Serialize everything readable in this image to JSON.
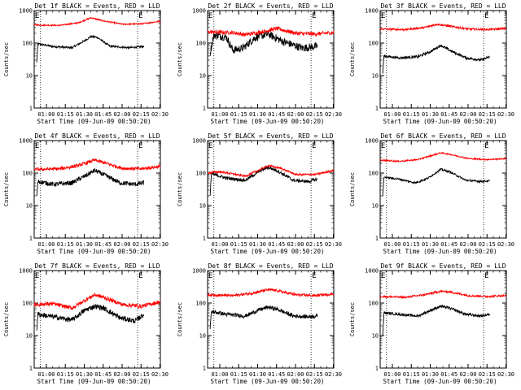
{
  "figure": {
    "x_title": "Start Time (09-Jun-09 00:50:20)",
    "y_title": "Counts/sec",
    "event_marker": "E",
    "x_ticks": [
      "01:00",
      "01:15",
      "01:30",
      "01:45",
      "02:00",
      "02:15",
      "02:30"
    ],
    "y_ticks": [
      "1",
      "10",
      "100",
      "1000"
    ]
  },
  "chart_data": [
    {
      "type": "line",
      "title": "Det 1f BLACK = Events, RED = LLD",
      "xlabel": "Start Time (09-Jun-09 00:50:20)",
      "ylabel": "Counts/sec",
      "x_unit": "minutes after 00:50:20",
      "xlim": [
        0,
        100
      ],
      "ylim": [
        1,
        1000
      ],
      "y_scale": "log",
      "event_markers": [
        {
          "label": "E",
          "x": 0
        },
        {
          "label": "E",
          "x": 82
        }
      ],
      "vlines": [
        5,
        82
      ],
      "series": [
        {
          "color": "#000000",
          "start": 2,
          "end": 87,
          "noise": 0.03,
          "points": [
            [
              2,
              25
            ],
            [
              3,
              95
            ],
            [
              15,
              78
            ],
            [
              30,
              72
            ],
            [
              40,
              118
            ],
            [
              45,
              160
            ],
            [
              50,
              150
            ],
            [
              60,
              80
            ],
            [
              75,
              72
            ],
            [
              87,
              78
            ]
          ]
        },
        {
          "color": "#ff0000",
          "start": 0,
          "end": 100,
          "noise": 0.02,
          "points": [
            [
              0,
              360
            ],
            [
              20,
              350
            ],
            [
              35,
              420
            ],
            [
              45,
              600
            ],
            [
              55,
              480
            ],
            [
              70,
              380
            ],
            [
              85,
              390
            ],
            [
              100,
              470
            ]
          ]
        }
      ]
    },
    {
      "type": "line",
      "title": "Det 2f BLACK = Events, RED = LLD",
      "xlabel": "Start Time (09-Jun-09 00:50:20)",
      "ylabel": "Counts/sec",
      "x_unit": "minutes after 00:50:20",
      "xlim": [
        0,
        100
      ],
      "ylim": [
        1,
        1000
      ],
      "y_scale": "log",
      "event_markers": [
        {
          "label": "E",
          "x": 0
        },
        {
          "label": "E",
          "x": 82
        }
      ],
      "vlines": [
        5,
        82
      ],
      "series": [
        {
          "color": "#000000",
          "start": 2,
          "end": 87,
          "noise": 0.12,
          "points": [
            [
              2,
              50
            ],
            [
              5,
              180
            ],
            [
              15,
              150
            ],
            [
              20,
              60
            ],
            [
              28,
              70
            ],
            [
              38,
              150
            ],
            [
              48,
              190
            ],
            [
              60,
              110
            ],
            [
              75,
              70
            ],
            [
              87,
              80
            ]
          ]
        },
        {
          "color": "#ff0000",
          "start": 0,
          "end": 100,
          "noise": 0.06,
          "points": [
            [
              0,
              220
            ],
            [
              20,
              210
            ],
            [
              30,
              180
            ],
            [
              45,
              230
            ],
            [
              55,
              280
            ],
            [
              70,
              200
            ],
            [
              85,
              190
            ],
            [
              100,
              210
            ]
          ]
        }
      ]
    },
    {
      "type": "line",
      "title": "Det 3f BLACK = Events, RED = LLD",
      "xlabel": "Start Time (09-Jun-09 00:50:20)",
      "ylabel": "Counts/sec",
      "x_unit": "minutes after 00:50:20",
      "xlim": [
        0,
        100
      ],
      "ylim": [
        1,
        1000
      ],
      "y_scale": "log",
      "event_markers": [
        {
          "label": "E",
          "x": 0
        },
        {
          "label": "E",
          "x": 82
        }
      ],
      "vlines": [
        5,
        82
      ],
      "series": [
        {
          "color": "#000000",
          "start": 2,
          "end": 87,
          "noise": 0.04,
          "points": [
            [
              2,
              12
            ],
            [
              3,
              40
            ],
            [
              15,
              35
            ],
            [
              30,
              38
            ],
            [
              40,
              55
            ],
            [
              48,
              85
            ],
            [
              55,
              60
            ],
            [
              68,
              35
            ],
            [
              80,
              30
            ],
            [
              87,
              38
            ]
          ]
        },
        {
          "color": "#ff0000",
          "start": 0,
          "end": 100,
          "noise": 0.03,
          "points": [
            [
              0,
              270
            ],
            [
              20,
              260
            ],
            [
              35,
              300
            ],
            [
              45,
              380
            ],
            [
              55,
              330
            ],
            [
              70,
              270
            ],
            [
              85,
              260
            ],
            [
              100,
              280
            ]
          ]
        }
      ]
    },
    {
      "type": "line",
      "title": "Det 4f BLACK = Events, RED = LLD",
      "xlabel": "Start Time (09-Jun-09 00:50:20)",
      "ylabel": "Counts/sec",
      "x_unit": "minutes after 00:50:20",
      "xlim": [
        0,
        100
      ],
      "ylim": [
        1,
        1000
      ],
      "y_scale": "log",
      "event_markers": [
        {
          "label": "E",
          "x": 0
        },
        {
          "label": "E",
          "x": 82
        }
      ],
      "vlines": [
        5,
        82
      ],
      "series": [
        {
          "color": "#000000",
          "start": 2,
          "end": 87,
          "noise": 0.07,
          "points": [
            [
              2,
              18
            ],
            [
              3,
              55
            ],
            [
              15,
              45
            ],
            [
              30,
              50
            ],
            [
              40,
              80
            ],
            [
              48,
              120
            ],
            [
              55,
              90
            ],
            [
              68,
              50
            ],
            [
              80,
              45
            ],
            [
              87,
              50
            ]
          ]
        },
        {
          "color": "#ff0000",
          "start": 0,
          "end": 100,
          "noise": 0.05,
          "points": [
            [
              0,
              130
            ],
            [
              20,
              135
            ],
            [
              35,
              170
            ],
            [
              48,
              250
            ],
            [
              55,
              210
            ],
            [
              70,
              140
            ],
            [
              85,
              135
            ],
            [
              100,
              160
            ]
          ]
        }
      ]
    },
    {
      "type": "line",
      "title": "Det 5f BLACK = Events, RED = LLD",
      "xlabel": "Start Time (09-Jun-09 00:50:20)",
      "ylabel": "Counts/sec",
      "x_unit": "minutes after 00:50:20",
      "xlim": [
        0,
        100
      ],
      "ylim": [
        1,
        1000
      ],
      "y_scale": "log",
      "event_markers": [
        {
          "label": "E",
          "x": 0
        },
        {
          "label": "E",
          "x": 82
        }
      ],
      "vlines": [
        5,
        82
      ],
      "series": [
        {
          "color": "#000000",
          "start": 2,
          "end": 87,
          "noise": 0.05,
          "points": [
            [
              2,
              20
            ],
            [
              3,
              95
            ],
            [
              15,
              70
            ],
            [
              30,
              60
            ],
            [
              42,
              120
            ],
            [
              48,
              150
            ],
            [
              55,
              120
            ],
            [
              68,
              60
            ],
            [
              80,
              55
            ],
            [
              87,
              65
            ]
          ]
        },
        {
          "color": "#ff0000",
          "start": 0,
          "end": 100,
          "noise": 0.03,
          "points": [
            [
              0,
              100
            ],
            [
              10,
              110
            ],
            [
              30,
              80
            ],
            [
              40,
              120
            ],
            [
              48,
              170
            ],
            [
              58,
              140
            ],
            [
              70,
              90
            ],
            [
              85,
              90
            ],
            [
              100,
              120
            ]
          ]
        }
      ]
    },
    {
      "type": "line",
      "title": "Det 6f BLACK = Events, RED = LLD",
      "xlabel": "Start Time (09-Jun-09 00:50:20)",
      "ylabel": "Counts/sec",
      "x_unit": "minutes after 00:50:20",
      "xlim": [
        0,
        100
      ],
      "ylim": [
        1,
        1000
      ],
      "y_scale": "log",
      "event_markers": [
        {
          "label": "E",
          "x": 0
        },
        {
          "label": "E",
          "x": 82
        }
      ],
      "vlines": [
        5,
        82
      ],
      "series": [
        {
          "color": "#000000",
          "start": 2,
          "end": 87,
          "noise": 0.03,
          "points": [
            [
              2,
              20
            ],
            [
              3,
              75
            ],
            [
              15,
              65
            ],
            [
              28,
              50
            ],
            [
              38,
              70
            ],
            [
              48,
              130
            ],
            [
              55,
              110
            ],
            [
              68,
              60
            ],
            [
              80,
              55
            ],
            [
              87,
              58
            ]
          ]
        },
        {
          "color": "#ff0000",
          "start": 0,
          "end": 100,
          "noise": 0.02,
          "points": [
            [
              0,
              250
            ],
            [
              15,
              230
            ],
            [
              30,
              260
            ],
            [
              48,
              420
            ],
            [
              55,
              380
            ],
            [
              70,
              280
            ],
            [
              85,
              260
            ],
            [
              100,
              280
            ]
          ]
        }
      ]
    },
    {
      "type": "line",
      "title": "Det 7f BLACK = Events, RED = LLD",
      "xlabel": "Start Time (09-Jun-09 00:50:20)",
      "ylabel": "Counts/sec",
      "x_unit": "minutes after 00:50:20",
      "xlim": [
        0,
        100
      ],
      "ylim": [
        1,
        1000
      ],
      "y_scale": "log",
      "event_markers": [
        {
          "label": "E",
          "x": 0
        },
        {
          "label": "E",
          "x": 82
        }
      ],
      "vlines": [
        5,
        82
      ],
      "series": [
        {
          "color": "#000000",
          "start": 2,
          "end": 87,
          "noise": 0.08,
          "points": [
            [
              2,
              15
            ],
            [
              3,
              45
            ],
            [
              15,
              38
            ],
            [
              30,
              30
            ],
            [
              40,
              60
            ],
            [
              48,
              80
            ],
            [
              55,
              70
            ],
            [
              68,
              35
            ],
            [
              80,
              28
            ],
            [
              87,
              45
            ]
          ]
        },
        {
          "color": "#ff0000",
          "start": 0,
          "end": 100,
          "noise": 0.06,
          "points": [
            [
              0,
              90
            ],
            [
              15,
              95
            ],
            [
              30,
              70
            ],
            [
              40,
              120
            ],
            [
              48,
              180
            ],
            [
              55,
              150
            ],
            [
              70,
              90
            ],
            [
              85,
              80
            ],
            [
              100,
              110
            ]
          ]
        }
      ]
    },
    {
      "type": "line",
      "title": "Det 8f BLACK = Events, RED = LLD",
      "xlabel": "Start Time (09-Jun-09 00:50:20)",
      "ylabel": "Counts/sec",
      "x_unit": "minutes after 00:50:20",
      "xlim": [
        0,
        100
      ],
      "ylim": [
        1,
        1000
      ],
      "y_scale": "log",
      "event_markers": [
        {
          "label": "E",
          "x": 0
        },
        {
          "label": "E",
          "x": 82
        }
      ],
      "vlines": [
        5,
        82
      ],
      "series": [
        {
          "color": "#000000",
          "start": 2,
          "end": 87,
          "noise": 0.06,
          "points": [
            [
              2,
              15
            ],
            [
              3,
              55
            ],
            [
              15,
              45
            ],
            [
              30,
              40
            ],
            [
              40,
              60
            ],
            [
              48,
              75
            ],
            [
              55,
              65
            ],
            [
              68,
              40
            ],
            [
              80,
              38
            ],
            [
              87,
              40
            ]
          ]
        },
        {
          "color": "#ff0000",
          "start": 0,
          "end": 100,
          "noise": 0.04,
          "points": [
            [
              0,
              180
            ],
            [
              20,
              170
            ],
            [
              35,
              200
            ],
            [
              48,
              260
            ],
            [
              55,
              240
            ],
            [
              70,
              180
            ],
            [
              85,
              170
            ],
            [
              100,
              190
            ]
          ]
        }
      ]
    },
    {
      "type": "line",
      "title": "Det 9f BLACK = Events, RED = LLD",
      "xlabel": "Start Time (09-Jun-09 00:50:20)",
      "ylabel": "Counts/sec",
      "x_unit": "minutes after 00:50:20",
      "xlim": [
        0,
        100
      ],
      "ylim": [
        1,
        1000
      ],
      "y_scale": "log",
      "event_markers": [
        {
          "label": "E",
          "x": 0
        },
        {
          "label": "E",
          "x": 82
        }
      ],
      "vlines": [
        5,
        82
      ],
      "series": [
        {
          "color": "#000000",
          "start": 2,
          "end": 87,
          "noise": 0.04,
          "points": [
            [
              2,
              10
            ],
            [
              3,
              50
            ],
            [
              15,
              45
            ],
            [
              30,
              40
            ],
            [
              40,
              60
            ],
            [
              48,
              80
            ],
            [
              55,
              70
            ],
            [
              68,
              45
            ],
            [
              80,
              40
            ],
            [
              87,
              45
            ]
          ]
        },
        {
          "color": "#ff0000",
          "start": 0,
          "end": 100,
          "noise": 0.03,
          "points": [
            [
              0,
              160
            ],
            [
              20,
              150
            ],
            [
              35,
              180
            ],
            [
              48,
              230
            ],
            [
              55,
              220
            ],
            [
              70,
              170
            ],
            [
              85,
              160
            ],
            [
              100,
              170
            ]
          ]
        }
      ]
    }
  ]
}
